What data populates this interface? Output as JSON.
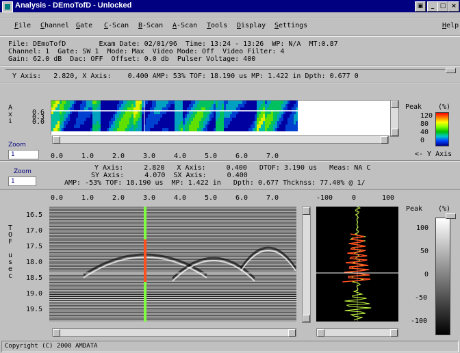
{
  "window": {
    "title": "Analysis - DEmoTofD - Unlocked"
  },
  "menu": [
    {
      "label": "File",
      "u": "F",
      "rest": "ile"
    },
    {
      "label": "Channel",
      "u": "C",
      "rest": "hannel"
    },
    {
      "label": "Gate",
      "u": "G",
      "rest": "ate"
    },
    {
      "label": "C-Scan",
      "u": "C",
      "rest": "-Scan"
    },
    {
      "label": "B-Scan",
      "u": "B",
      "rest": "-Scan"
    },
    {
      "label": "A-Scan",
      "u": "A",
      "rest": "-Scan"
    },
    {
      "label": "Tools",
      "u": "T",
      "rest": "ools"
    },
    {
      "label": "Display",
      "u": "D",
      "rest": "isplay"
    },
    {
      "label": "Settings",
      "u": "S",
      "rest": "ettings"
    }
  ],
  "help_label": "Help",
  "info": {
    "line1": "File: DEmoTofD        Exam Date: 02/01/96  Time: 13:24 - 13:26  WP: N/A  MT:0.87",
    "line2": "Channel: 1  Gate: SW 1  Mode: Max  Video Mode: Off  Video Filter: 4",
    "line3": "Gain: 62.0 dB  Dac: OFF  Offset: 0.0 db  Pulser Voltage: 400"
  },
  "cursor_line": "Y Axis:   2.820, X Axis:    0.400 AMP: 53% TOF: 18.190 us MP: 1.422 in Dpth: 0.677 0",
  "cscan": {
    "axis_letters": [
      "A",
      "x",
      "i"
    ],
    "y_ticks": [
      "0.6",
      "0.3",
      "0.0"
    ],
    "x_ticks": [
      "0.0",
      "1.0",
      "2.0",
      "3.0",
      "4.0",
      "5.0",
      "6.0",
      "7.0"
    ],
    "zoom_label": "Zoom",
    "zoom_value": "1"
  },
  "peak_legend": {
    "title": "Peak",
    "unit": "(%)",
    "ticks": [
      "120",
      "80",
      "40",
      "0"
    ],
    "y_axis_label": "<- Y Axis"
  },
  "readout": {
    "zoom_label": "Zoom",
    "zoom_value": "1",
    "line1": "Y Axis:     2.820   X Axis:     0.400   DTOF: 3.190 us   Meas: NA C",
    "line2": "SY Axis:     4.070  SX Axis:     0.400",
    "line3": "AMP: -53% TOF: 18.190 us  MP: 1.422 in   Dpth: 0.677 Thcknss: 77.40% @ 1/"
  },
  "bscan": {
    "x_ticks": [
      "0.0",
      "1.0",
      "2.0",
      "3.0",
      "4.0",
      "5.0",
      "6.0",
      "7.0"
    ],
    "y_ticks": [
      "16.5",
      "17.0",
      "17.5",
      "18.0",
      "18.5",
      "19.0",
      "19.5"
    ],
    "y_axis_letters": [
      "T",
      "O",
      "F",
      "",
      "u",
      "s",
      "e",
      "c"
    ]
  },
  "ascan": {
    "x_ticks": [
      "-100",
      "0",
      "100"
    ]
  },
  "gray_legend": {
    "title": "Peak",
    "unit": "(%)",
    "ticks": [
      "100",
      "50",
      "0",
      "-50",
      "-100"
    ]
  },
  "status": "Copyright (C) 2000 AMDATA",
  "colors": {
    "titlebar": "#000080",
    "cursor_green": "#80ff40",
    "cursor_red": "#ff5020",
    "ascan_trace": "#c8ff40"
  }
}
